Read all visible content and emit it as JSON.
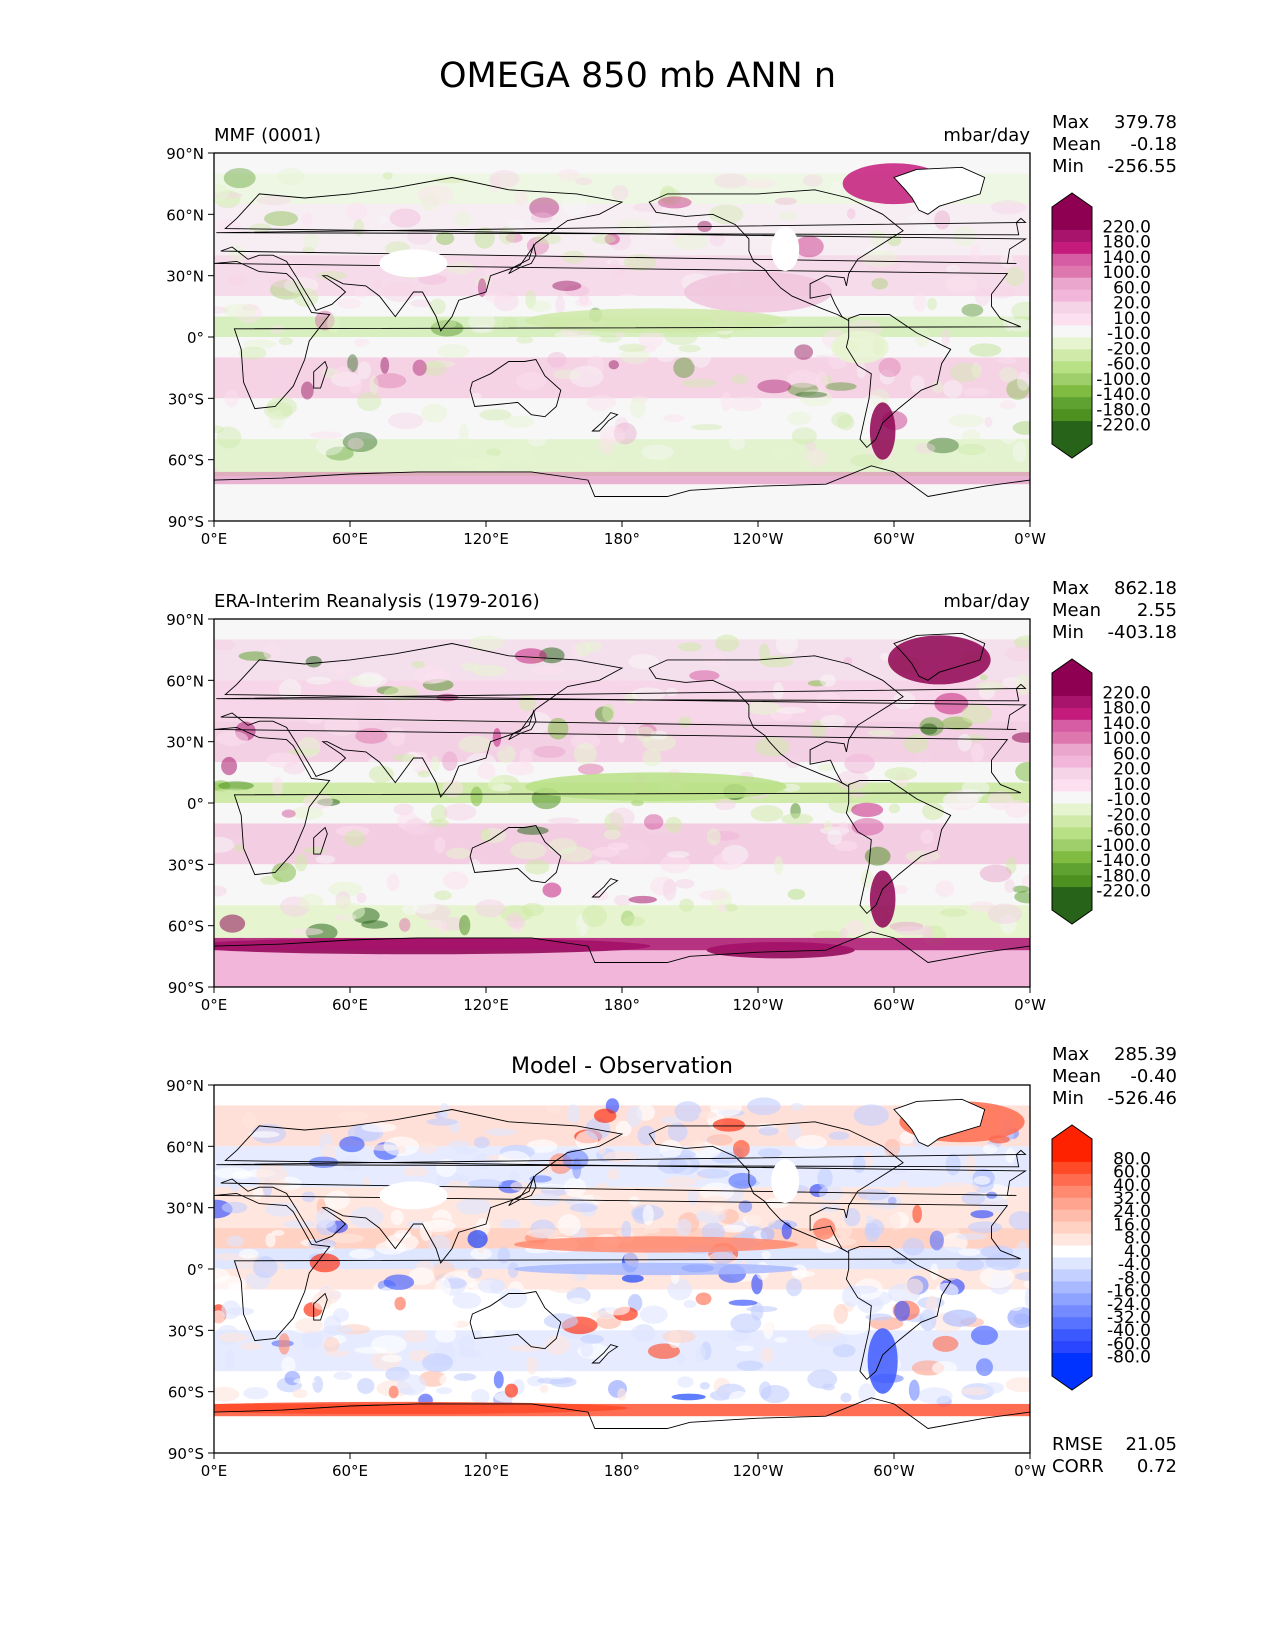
{
  "figure": {
    "title": "OMEGA 850 mb ANN n"
  },
  "axes": {
    "lat_ticks": [
      "90°N",
      "60°N",
      "30°N",
      "0°",
      "30°S",
      "60°S",
      "90°S"
    ],
    "lon_ticks": [
      "0°E",
      "60°E",
      "120°E",
      "180°",
      "120°W",
      "60°W",
      "0°W"
    ]
  },
  "colors": {
    "diverging_pos": "#8e0152",
    "diverging_neg": "#276419",
    "diff_pos": "#ff2200",
    "diff_neg": "#0033ff",
    "neutral": "#f7f7f7"
  },
  "panels": [
    {
      "left_title": "MMF (0001)",
      "right_title": "mbar/day",
      "center_title": "",
      "stats": [
        {
          "label": "Max",
          "value": "379.78"
        },
        {
          "label": "Mean",
          "value": "-0.18"
        },
        {
          "label": "Min",
          "value": "-256.55"
        }
      ],
      "colorbar_labels": [
        "220.0",
        "180.0",
        "140.0",
        "100.0",
        "60.0",
        "20.0",
        "10.0",
        "-10.0",
        "-20.0",
        "-60.0",
        "-100.0",
        "-140.0",
        "-180.0",
        "-220.0"
      ],
      "metrics": []
    },
    {
      "left_title": "ERA-Interim Reanalysis (1979-2016)",
      "right_title": "mbar/day",
      "center_title": "",
      "stats": [
        {
          "label": "Max",
          "value": "862.18"
        },
        {
          "label": "Mean",
          "value": "2.55"
        },
        {
          "label": "Min",
          "value": "-403.18"
        }
      ],
      "colorbar_labels": [
        "220.0",
        "180.0",
        "140.0",
        "100.0",
        "60.0",
        "20.0",
        "10.0",
        "-10.0",
        "-20.0",
        "-60.0",
        "-100.0",
        "-140.0",
        "-180.0",
        "-220.0"
      ],
      "metrics": []
    },
    {
      "left_title": "",
      "right_title": "",
      "center_title": "Model - Observation",
      "stats": [
        {
          "label": "Max",
          "value": "285.39"
        },
        {
          "label": "Mean",
          "value": "-0.40"
        },
        {
          "label": "Min",
          "value": "-526.46"
        }
      ],
      "colorbar_labels": [
        "80.0",
        "60.0",
        "40.0",
        "32.0",
        "24.0",
        "16.0",
        "8.0",
        "4.0",
        "-4.0",
        "-8.0",
        "-16.0",
        "-24.0",
        "-32.0",
        "-40.0",
        "-60.0",
        "-80.0"
      ],
      "metrics": [
        {
          "label": "RMSE",
          "value": "21.05"
        },
        {
          "label": "CORR",
          "value": "0.72"
        }
      ]
    }
  ]
}
